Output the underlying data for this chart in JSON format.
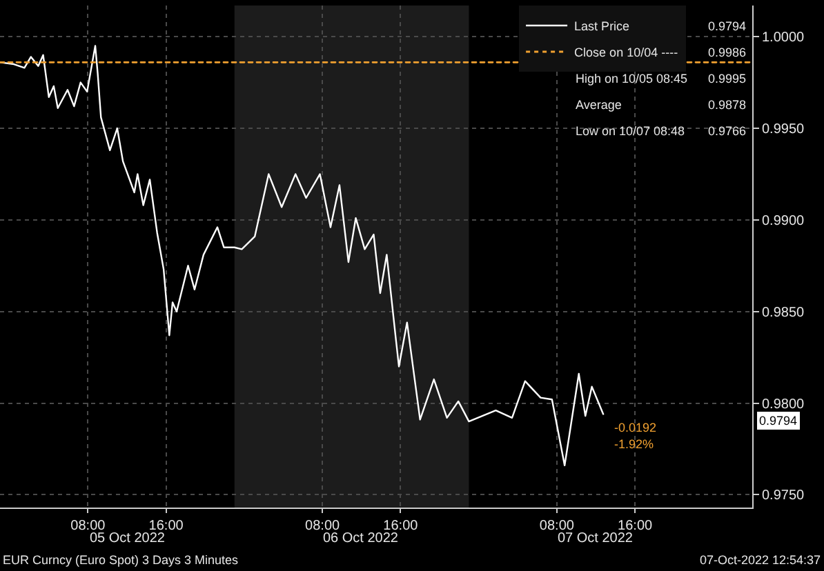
{
  "chart_data": {
    "type": "line",
    "x": [
      "2022-10-04T23:00",
      "2022-10-05T00:25",
      "2022-10-05T01:30",
      "2022-10-05T02:10",
      "2022-10-05T02:55",
      "2022-10-05T03:25",
      "2022-10-05T04:00",
      "2022-10-05T04:30",
      "2022-10-05T04:55",
      "2022-10-05T05:55",
      "2022-10-05T06:35",
      "2022-10-05T07:15",
      "2022-10-05T07:55",
      "2022-10-05T08:45",
      "2022-10-05T09:00",
      "2022-10-05T09:20",
      "2022-10-05T10:15",
      "2022-10-05T11:00",
      "2022-10-05T11:35",
      "2022-10-05T12:45",
      "2022-10-05T13:05",
      "2022-10-05T13:40",
      "2022-10-05T14:20",
      "2022-10-05T15:05",
      "2022-10-05T15:45",
      "2022-10-05T16:20",
      "2022-10-05T16:40",
      "2022-10-05T17:05",
      "2022-10-05T18:15",
      "2022-10-05T18:55",
      "2022-10-05T19:50",
      "2022-10-05T21:15",
      "2022-10-05T21:55",
      "2022-10-05T23:00",
      "2022-10-05T23:45",
      "2022-10-06T01:05",
      "2022-10-06T02:30",
      "2022-10-06T03:50",
      "2022-10-06T05:15",
      "2022-10-06T06:20",
      "2022-10-06T07:45",
      "2022-10-06T08:50",
      "2022-10-06T09:45",
      "2022-10-06T10:40",
      "2022-10-06T11:25",
      "2022-10-06T12:20",
      "2022-10-06T13:15",
      "2022-10-06T13:55",
      "2022-10-06T14:35",
      "2022-10-06T15:30",
      "2022-10-06T15:50",
      "2022-10-06T16:40",
      "2022-10-06T18:00",
      "2022-10-06T19:25",
      "2022-10-06T20:45",
      "2022-10-06T21:55",
      "2022-10-06T23:00",
      "2022-10-07T01:45",
      "2022-10-07T03:25",
      "2022-10-07T04:45",
      "2022-10-07T06:20",
      "2022-10-07T07:30",
      "2022-10-07T08:48",
      "2022-10-07T10:15",
      "2022-10-07T10:55",
      "2022-10-07T11:35",
      "2022-10-07T12:45"
    ],
    "series": [
      {
        "name": "Last Price",
        "color": "#ffffff",
        "values": [
          0.9986,
          0.9985,
          0.9983,
          0.9989,
          0.9984,
          0.999,
          0.9967,
          0.9973,
          0.9961,
          0.9971,
          0.9962,
          0.9975,
          0.997,
          0.9995,
          0.998,
          0.9956,
          0.9938,
          0.995,
          0.9932,
          0.9915,
          0.9925,
          0.9908,
          0.9922,
          0.9893,
          0.9873,
          0.9837,
          0.9855,
          0.985,
          0.9875,
          0.9862,
          0.9881,
          0.9896,
          0.9885,
          0.9885,
          0.9884,
          0.9891,
          0.9925,
          0.9907,
          0.9925,
          0.9912,
          0.9925,
          0.9896,
          0.9919,
          0.9877,
          0.9901,
          0.9884,
          0.9892,
          0.986,
          0.9881,
          0.9836,
          0.982,
          0.9844,
          0.9791,
          0.9813,
          0.9792,
          0.9801,
          0.979,
          0.9796,
          0.9792,
          0.9812,
          0.9803,
          0.9802,
          0.9766,
          0.9816,
          0.9793,
          0.9809,
          0.9794
        ]
      }
    ],
    "xlim": [
      "2022-10-04T23:00",
      "2022-10-08T04:00"
    ],
    "xticks": [
      {
        "value": "2022-10-05T08:00",
        "label": "08:00"
      },
      {
        "value": "2022-10-05T16:00",
        "label": "16:00"
      },
      {
        "value": "2022-10-06T08:00",
        "label": "08:00"
      },
      {
        "value": "2022-10-06T16:00",
        "label": "16:00"
      },
      {
        "value": "2022-10-07T08:00",
        "label": "08:00"
      },
      {
        "value": "2022-10-07T16:00",
        "label": "16:00"
      }
    ],
    "ylim": [
      0.9743,
      1.0017
    ],
    "yticks": [
      {
        "value": 0.975,
        "label": "0.9750"
      },
      {
        "value": 0.98,
        "label": "0.9800"
      },
      {
        "value": 0.985,
        "label": "0.9850"
      },
      {
        "value": 0.99,
        "label": "0.9900"
      },
      {
        "value": 0.995,
        "label": "0.9950"
      },
      {
        "value": 1.0,
        "label": "1.0000"
      }
    ],
    "ref_lines": [
      {
        "axis": "y",
        "value": 0.9986,
        "label": "Close on 10/04 ----",
        "color": "#f0a030",
        "line_style": "dotted"
      }
    ],
    "bands": [
      {
        "axis": "x",
        "from": "2022-10-05T23:00",
        "to": "2022-10-06T23:00",
        "color": "#1c1c1c"
      }
    ],
    "grid": true,
    "legend": "top right",
    "line_style": "solid",
    "marker": "none",
    "annotations": [
      "0.9794",
      "0.9986",
      "High on 10/05 08:45",
      "0.9995",
      "Average",
      "0.9878",
      "Low on 10/07 08:48",
      "0.9766",
      "0.9794",
      "-0.0192",
      "-1.92%",
      "05 Oct 2022",
      "06 Oct 2022",
      "07 Oct 2022",
      "EUR Curncy (Euro Spot) 3 Days 3 Minutes",
      "07-Oct-2022 12:54:37"
    ]
  }
}
